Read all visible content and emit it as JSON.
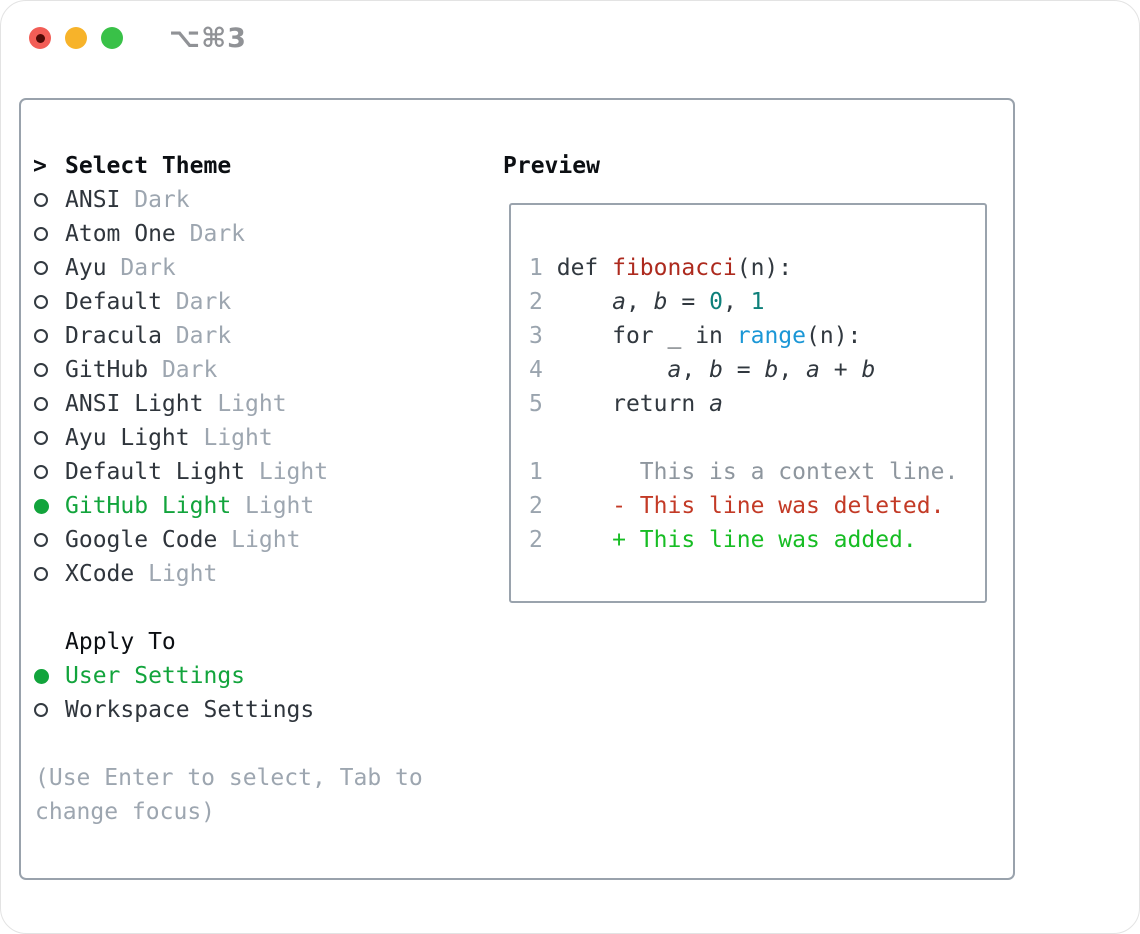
{
  "window": {
    "title": "⌥⌘3",
    "traffic_lights": [
      {
        "name": "close"
      },
      {
        "name": "minimize"
      },
      {
        "name": "zoom"
      }
    ]
  },
  "theme_picker": {
    "header_prefix": ">",
    "header_label": "Select Theme",
    "themes": [
      {
        "name": "ANSI",
        "tag": "Dark",
        "selected": false
      },
      {
        "name": "Atom One",
        "tag": "Dark",
        "selected": false
      },
      {
        "name": "Ayu",
        "tag": "Dark",
        "selected": false
      },
      {
        "name": "Default",
        "tag": "Dark",
        "selected": false
      },
      {
        "name": "Dracula",
        "tag": "Dark",
        "selected": false
      },
      {
        "name": "GitHub",
        "tag": "Dark",
        "selected": false
      },
      {
        "name": "ANSI Light",
        "tag": "Light",
        "selected": false
      },
      {
        "name": "Ayu Light",
        "tag": "Light",
        "selected": false
      },
      {
        "name": "Default Light",
        "tag": "Light",
        "selected": false
      },
      {
        "name": "GitHub Light",
        "tag": "Light",
        "selected": true
      },
      {
        "name": "Google Code",
        "tag": "Light",
        "selected": false
      },
      {
        "name": "XCode",
        "tag": "Light",
        "selected": false
      }
    ],
    "apply_to_label": "Apply To",
    "apply_to_options": [
      {
        "name": "User Settings",
        "selected": true
      },
      {
        "name": "Workspace Settings",
        "selected": false
      }
    ],
    "help_text": "(Use Enter to select, Tab to change focus)"
  },
  "preview": {
    "label": "Preview",
    "code_lines": [
      {
        "num": "1",
        "tokens": [
          {
            "text": "def ",
            "style": "keyword"
          },
          {
            "text": "fibonacci",
            "style": "function"
          },
          {
            "text": "(n):",
            "style": "plain"
          }
        ]
      },
      {
        "num": "2",
        "tokens": [
          {
            "text": "    ",
            "style": "plain"
          },
          {
            "text": "a",
            "style": "variable"
          },
          {
            "text": ", ",
            "style": "plain"
          },
          {
            "text": "b",
            "style": "variable"
          },
          {
            "text": " = ",
            "style": "plain"
          },
          {
            "text": "0",
            "style": "number"
          },
          {
            "text": ", ",
            "style": "plain"
          },
          {
            "text": "1",
            "style": "number"
          }
        ]
      },
      {
        "num": "3",
        "tokens": [
          {
            "text": "    ",
            "style": "plain"
          },
          {
            "text": "for",
            "style": "keyword"
          },
          {
            "text": " _ ",
            "style": "plain"
          },
          {
            "text": "in",
            "style": "keyword"
          },
          {
            "text": " ",
            "style": "plain"
          },
          {
            "text": "range",
            "style": "builtin"
          },
          {
            "text": "(n):",
            "style": "plain"
          }
        ]
      },
      {
        "num": "4",
        "tokens": [
          {
            "text": "        ",
            "style": "plain"
          },
          {
            "text": "a",
            "style": "variable"
          },
          {
            "text": ", ",
            "style": "plain"
          },
          {
            "text": "b",
            "style": "variable"
          },
          {
            "text": " = ",
            "style": "plain"
          },
          {
            "text": "b",
            "style": "variable"
          },
          {
            "text": ", ",
            "style": "plain"
          },
          {
            "text": "a",
            "style": "variable"
          },
          {
            "text": " + ",
            "style": "plain"
          },
          {
            "text": "b",
            "style": "variable"
          }
        ]
      },
      {
        "num": "5",
        "tokens": [
          {
            "text": "    ",
            "style": "plain"
          },
          {
            "text": "return",
            "style": "keyword"
          },
          {
            "text": " ",
            "style": "plain"
          },
          {
            "text": "a",
            "style": "variable"
          }
        ]
      }
    ],
    "diff_lines": [
      {
        "num": "1",
        "marker": " ",
        "text": "This is a context line.",
        "type": "context"
      },
      {
        "num": "2",
        "marker": "-",
        "text": "This line was deleted.",
        "type": "deleted"
      },
      {
        "num": "2",
        "marker": "+",
        "text": "This line was added.",
        "type": "added"
      }
    ]
  },
  "colors": {
    "accent-green": "#12a43c",
    "diff-added": "#17bd24",
    "diff-deleted": "#c33a26",
    "fn-red": "#ad2a1e",
    "num-teal": "#0e807a",
    "builtin-blue": "#1b97d6",
    "code-fg": "#31383f",
    "muted": "#9da6b0",
    "ln-gray": "#9aa4ae",
    "context-gray": "#8e969e",
    "item-fg": "#2f353c",
    "header-fg": "#0c0f13",
    "panel-border": "#99a2ac",
    "box-border": "#9aa3ad",
    "title-gray": "#909296",
    "traffic-red": "#f25d56",
    "traffic-yellow": "#f7b32a",
    "traffic-green": "#39c148"
  }
}
